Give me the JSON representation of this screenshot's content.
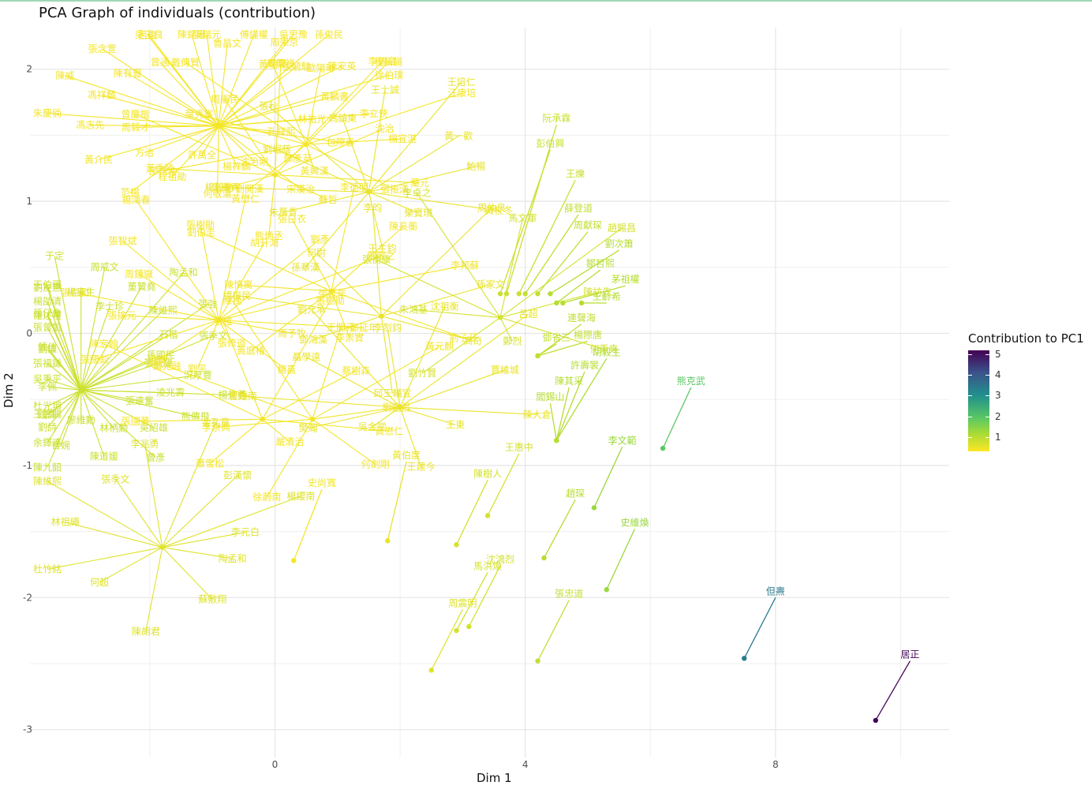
{
  "title": "PCA Graph of individuals (contribution)",
  "chart_data": {
    "type": "scatter",
    "title": "PCA Graph of individuals (contribution)",
    "xlabel": "Dim 1",
    "ylabel": "Dim 2",
    "xlim": [
      -4.3,
      10.7
    ],
    "ylim": [
      -3.3,
      2.3
    ],
    "x_ticks": [
      "0",
      "4",
      "8"
    ],
    "x_tick_values": [
      0,
      4,
      8
    ],
    "y_ticks": [
      "2",
      "1",
      "0",
      "-1",
      "-2",
      "-3"
    ],
    "y_tick_values": [
      2,
      1,
      0,
      -1,
      -2,
      -3
    ],
    "grid": true,
    "legend": {
      "title": "Contribution to PC1",
      "position": "right",
      "ticks": [
        "5",
        "4",
        "3",
        "2",
        "1"
      ],
      "tick_values": [
        5,
        4,
        3,
        2,
        1
      ],
      "range": [
        0.3,
        5.2
      ],
      "colormap": "viridis (reversed)"
    },
    "labeled_points": [
      {
        "name": "居正",
        "x": 9.6,
        "y": -2.93,
        "lx": 10.15,
        "ly": -2.48,
        "contrib": 5.1
      },
      {
        "name": "但燾",
        "x": 7.5,
        "y": -2.46,
        "lx": 8.0,
        "ly": -2.0,
        "contrib": 3.2
      },
      {
        "name": "熊克武",
        "x": 6.2,
        "y": -0.87,
        "lx": 6.65,
        "ly": -0.41,
        "contrib": 2.0
      },
      {
        "name": "李文範",
        "x": 5.1,
        "y": -1.32,
        "lx": 5.55,
        "ly": -0.86,
        "contrib": 1.3
      },
      {
        "name": "史維煥",
        "x": 5.3,
        "y": -1.94,
        "lx": 5.75,
        "ly": -1.48,
        "contrib": 1.3
      },
      {
        "name": "趙琛",
        "x": 4.3,
        "y": -1.7,
        "lx": 4.8,
        "ly": -1.26,
        "contrib": 1.0
      },
      {
        "name": "張忠道",
        "x": 4.2,
        "y": -2.48,
        "lx": 4.7,
        "ly": -2.02,
        "contrib": 0.9
      },
      {
        "name": "沈鴻烈",
        "x": 3.1,
        "y": -2.22,
        "lx": 3.6,
        "ly": -1.76,
        "contrib": 0.7
      },
      {
        "name": "馬洪煥",
        "x": 2.9,
        "y": -2.25,
        "lx": 3.4,
        "ly": -1.81,
        "contrib": 0.7
      },
      {
        "name": "周震明",
        "x": 2.5,
        "y": -2.55,
        "lx": 3.0,
        "ly": -2.09,
        "contrib": 0.6
      },
      {
        "name": "胡毅生",
        "x": 4.5,
        "y": -0.81,
        "lx": 5.3,
        "ly": -0.19,
        "contrib": 1.1
      },
      {
        "name": "許壽裳",
        "x": 4.5,
        "y": -0.81,
        "lx": 4.95,
        "ly": -0.29,
        "contrib": 1.0
      },
      {
        "name": "陳其采",
        "x": 4.5,
        "y": -0.81,
        "lx": 4.7,
        "ly": -0.41,
        "contrib": 1.0
      },
      {
        "name": "閻錫山",
        "x": 4.5,
        "y": -0.81,
        "lx": 4.4,
        "ly": -0.53,
        "contrib": 1.0
      },
      {
        "name": "楊際唐",
        "x": 4.2,
        "y": -0.17,
        "lx": 5.0,
        "ly": -0.06,
        "contrib": 0.9
      },
      {
        "name": "鄧省三",
        "x": 4.2,
        "y": -0.17,
        "lx": 4.5,
        "ly": -0.08,
        "contrib": 0.9
      },
      {
        "name": "連聲海",
        "x": 4.2,
        "y": -0.17,
        "lx": 4.9,
        "ly": 0.07,
        "contrib": 0.9
      },
      {
        "name": "王齡希",
        "x": 4.9,
        "y": 0.23,
        "lx": 5.3,
        "ly": 0.23,
        "contrib": 1.0
      },
      {
        "name": "茅祖權",
        "x": 4.6,
        "y": 0.23,
        "lx": 5.6,
        "ly": 0.36,
        "contrib": 1.0
      },
      {
        "name": "鄒哲熙",
        "x": 4.5,
        "y": 0.23,
        "lx": 5.2,
        "ly": 0.48,
        "contrib": 1.0
      },
      {
        "name": "劉次簫",
        "x": 4.4,
        "y": 0.3,
        "lx": 5.5,
        "ly": 0.63,
        "contrib": 1.0
      },
      {
        "name": "周獻琛",
        "x": 4.2,
        "y": 0.3,
        "lx": 5.0,
        "ly": 0.77,
        "contrib": 0.9
      },
      {
        "name": "薛登道",
        "x": 4.0,
        "y": 0.3,
        "lx": 4.85,
        "ly": 0.9,
        "contrib": 0.9
      },
      {
        "name": "王爍",
        "x": 3.9,
        "y": 0.3,
        "lx": 4.8,
        "ly": 1.16,
        "contrib": 0.8
      },
      {
        "name": "阮承霖",
        "x": 3.7,
        "y": 0.3,
        "lx": 4.5,
        "ly": 1.58,
        "contrib": 0.8
      },
      {
        "name": "彭伯興",
        "x": 3.6,
        "y": 0.3,
        "lx": 4.4,
        "ly": 1.39,
        "contrib": 0.8
      },
      {
        "name": "王惠中",
        "x": 3.4,
        "y": -1.38,
        "lx": 3.9,
        "ly": -0.91,
        "contrib": 0.7
      },
      {
        "name": "陳樹人",
        "x": 2.9,
        "y": -1.6,
        "lx": 3.4,
        "ly": -1.11,
        "contrib": 0.7
      },
      {
        "name": "史尚寬",
        "x": 0.3,
        "y": -1.72,
        "lx": 0.75,
        "ly": -1.18,
        "contrib": 0.4
      },
      {
        "name": "黃伯度",
        "x": 1.8,
        "y": -1.57,
        "lx": 2.1,
        "ly": -0.97,
        "contrib": 0.5
      }
    ],
    "clusters": [
      {
        "x": -3.1,
        "y": -0.43,
        "contrib": 0.8,
        "labels": [
          "張毓驊",
          "況厚豐",
          "楊覺勇",
          "凌兆壽",
          "熊傳飛",
          "張遠奮",
          "吳紹雄",
          "曾彥",
          "林柄勳",
          "陳道媛",
          "廖維勳",
          "曾婉",
          "陳九韶",
          "劉詩",
          "余鐸達",
          "杜光塤",
          "王雲鵑",
          "鐘澤",
          "李佩",
          "吳秉平",
          "張福謙",
          "劉燦",
          "鍾信",
          "張曾凱",
          "楊劭清",
          "羅述禮",
          "劉友惠",
          "孫仔會",
          "王伯疆",
          "于定",
          "楊憲生",
          "周戒文",
          "李士珍",
          "董贊堯",
          "陶孟和",
          "陳維熙",
          "張強",
          "石楷",
          "張季文",
          "孫國民"
        ]
      },
      {
        "x": -1.8,
        "y": -1.62,
        "contrib": 0.6,
        "labels": [
          "陶孟和",
          "蘇敷翔",
          "陳胡君",
          "何超",
          "杜竹銘",
          "林祖繩",
          "陳維熙",
          "張季文",
          "李兆勇",
          "金孔章",
          "彭漢懷",
          "楊纓南",
          "李元白"
        ]
      },
      {
        "x": -0.9,
        "y": 1.57,
        "contrib": 0.4,
        "labels": [
          "楊祥麟",
          "何敬瀟",
          "許萬全",
          "程祖勛",
          "范揚",
          "方治",
          "黃介民",
          "周毅才",
          "馮志先",
          "朱慶倘",
          "馮祥麟",
          "陳威",
          "陳有豐",
          "張念萱",
          "曾通",
          "呂復",
          "吳玉良",
          "陳錫珊",
          "張瑞元",
          "魯昌文",
          "傅謹權",
          "吳思豫",
          "周秉京",
          "孫俊民",
          "張毓駿",
          "陳安英",
          "徐伯璞",
          "黃麟書",
          "李立俠",
          "林祐光",
          "包際春",
          "孔祥熙",
          "鄭彥棻",
          "宋漢治",
          "沈治剛"
        ]
      },
      {
        "x": -0.9,
        "y": 0.1,
        "contrib": 0.4,
        "labels": [
          "劉鑠",
          "張國釗",
          "張擒元",
          "張仁和",
          "周鍾嶽",
          "張智斌",
          "楊鴻春",
          "張樹勛",
          "黃懋仁",
          "胡升鴻",
          "劉彥",
          "雷敬之",
          "張延年",
          "鄭延年",
          "周予牧",
          "楊嘉",
          "張修道",
          "劉平"
        ]
      },
      {
        "x": -0.2,
        "y": -0.65,
        "contrib": 0.4,
        "labels": [
          "張國華",
          "陳宏翰",
          "張維",
          "張樹勛",
          "蔡樹森",
          "黃懋仁",
          "嚴清治",
          "蕭雪松"
        ]
      },
      {
        "x": 0.0,
        "y": 1.2,
        "contrib": 0.4,
        "labels": [
          "曾慶楷",
          "周憲民",
          "周慶祥",
          "李鶴章",
          "沈治",
          "葉元",
          "蘇哲",
          "熊炳丞",
          "朱霽青",
          "黃季陸"
        ]
      },
      {
        "x": 0.6,
        "y": -0.65,
        "contrib": 0.4,
        "labels": [
          "陳挽",
          "王開元",
          "黃元麒",
          "劉鑑昌",
          "何劍剛",
          "徐蔚南",
          "李崇典",
          "蕭兆融"
        ]
      },
      {
        "x": 0.5,
        "y": 1.43,
        "contrib": 0.4,
        "labels": [
          "歐陽琳",
          "程長韻",
          "汪康培",
          "楊宜湛",
          "張振漢",
          "黃興漢",
          "劉開漢",
          "邵元冲",
          "葉秀峯",
          "戴傳賢",
          "黃朝琴"
        ]
      },
      {
        "x": 0.9,
        "y": 0.32,
        "contrib": 0.4,
        "labels": [
          "陳長蘅",
          "李邦蘇",
          "劉子芬",
          "李崇實",
          "黃庭椿",
          "陳慎寓",
          "劉伯圭",
          "張白衣",
          "李德明"
        ]
      },
      {
        "x": 1.5,
        "y": 1.07,
        "contrib": 0.5,
        "labels": [
          "鮑暢",
          "黃杖冬",
          "樂寶瓚",
          "王主鈞",
          "孫華漢",
          "朱萬青",
          "楊穀勳",
          "劉崛蔭",
          "張秋",
          "馮鎮東",
          "王士誠",
          "王培仁",
          "黃一歡"
        ]
      },
      {
        "x": 1.7,
        "y": 0.13,
        "contrib": 0.5,
        "labels": [
          "高奇",
          "邱王輔宜",
          "鄧鴻藻",
          "譚振民",
          "何尉",
          "李昀",
          "周仲良",
          "孫家文"
        ]
      },
      {
        "x": 2.0,
        "y": -0.56,
        "contrib": 0.5,
        "labels": [
          "王建今",
          "吳金堂",
          "樊瀚",
          "曹鍾南",
          "聶學遠",
          "劉允承",
          "李烈鈞",
          "沈祖衡",
          "呂超",
          "賈維城",
          "陳大倉",
          "王東"
        ]
      },
      {
        "x": 3.6,
        "y": 0.12,
        "contrib": 0.7,
        "labels": [
          "劉竹賢",
          "朱鴻基",
          "張衡康",
          "李卓之",
          "馬文軍",
          "趙錫昌",
          "陳訪先",
          "何秉堯",
          "鄭烈"
        ]
      }
    ]
  }
}
